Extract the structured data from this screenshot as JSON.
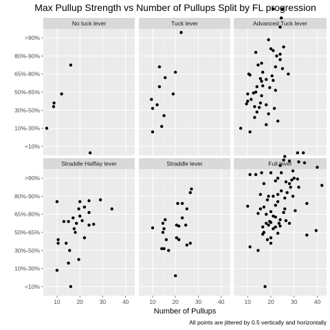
{
  "chart_data": {
    "type": "scatter",
    "title": "Max Pullup Strength vs Number of Pullups Split by FL progression",
    "xlabel": "Number of Pullups",
    "ylabel": "",
    "caption": "All points are jittered by 0.5 vertically and horizontally",
    "x_ticks": [
      10,
      20,
      30,
      40
    ],
    "xlim": [
      4,
      44
    ],
    "y_categories": [
      "<10%",
      "10%-30%",
      "30%-50%",
      "50%-65%",
      "65%-80%",
      "80%-90%",
      ">90%"
    ],
    "ylim": [
      0.5,
      7.5
    ],
    "grid": true,
    "facets": [
      {
        "name": "No tuck lever",
        "points": [
          [
            5.5,
            1.0
          ],
          [
            8.5,
            2.2
          ],
          [
            8.7,
            2.4
          ],
          [
            12,
            2.9
          ],
          [
            16,
            4.5
          ]
        ]
      },
      {
        "name": "Tuck lever",
        "points": [
          [
            22.5,
            6.3
          ],
          [
            13,
            4.4
          ],
          [
            20,
            4.1
          ],
          [
            15.5,
            3.8
          ],
          [
            13,
            3.3
          ],
          [
            19,
            2.9
          ],
          [
            9.5,
            2.6
          ],
          [
            10,
            2.1
          ],
          [
            12,
            2.3
          ],
          [
            15,
            1.7
          ],
          [
            14,
            1.1
          ],
          [
            10,
            0.8
          ]
        ]
      },
      {
        "name": "Advanced Tuck lever",
        "points": [
          [
            25,
            7.6
          ],
          [
            21,
            7.6
          ],
          [
            24.5,
            7.1
          ],
          [
            24,
            6.6
          ],
          [
            19,
            5.9
          ],
          [
            13.5,
            5.2
          ],
          [
            20,
            5.4
          ],
          [
            21,
            5.3
          ],
          [
            25.5,
            5.5
          ],
          [
            24,
            5.1
          ],
          [
            22.5,
            5.0
          ],
          [
            24,
            4.8
          ],
          [
            14.5,
            4.5
          ],
          [
            16,
            4.6
          ],
          [
            22,
            4.4
          ],
          [
            25,
            4.3
          ],
          [
            27.5,
            4.0
          ],
          [
            16.5,
            4.1
          ],
          [
            10.5,
            4.0
          ],
          [
            11,
            3.95
          ],
          [
            20.5,
            3.9
          ],
          [
            15.5,
            3.75
          ],
          [
            18,
            3.7
          ],
          [
            16,
            3.6
          ],
          [
            21,
            3.65
          ],
          [
            14,
            3.3
          ],
          [
            16.5,
            3.35
          ],
          [
            19.5,
            3.25
          ],
          [
            22,
            3.1
          ],
          [
            10,
            2.9
          ],
          [
            12.5,
            2.95
          ],
          [
            13.5,
            3.0
          ],
          [
            16,
            2.8
          ],
          [
            11.5,
            2.6
          ],
          [
            10,
            2.5
          ],
          [
            15.5,
            2.4
          ],
          [
            13,
            2.2
          ],
          [
            18,
            2.3
          ],
          [
            9.5,
            2.35
          ],
          [
            15,
            2.15
          ],
          [
            21.5,
            2.1
          ],
          [
            14,
            1.9
          ],
          [
            19,
            1.8
          ],
          [
            13,
            1.6
          ],
          [
            23,
            1.4
          ],
          [
            18,
            1.2
          ],
          [
            7,
            1.0
          ],
          [
            11,
            0.8
          ]
        ]
      },
      {
        "name": "Straddle Halflay lever",
        "points": [
          [
            24.5,
            7.4
          ],
          [
            10,
            4.7
          ],
          [
            20,
            4.7
          ],
          [
            24,
            4.75
          ],
          [
            29,
            4.8
          ],
          [
            34,
            4.3
          ],
          [
            22,
            4.4
          ],
          [
            24,
            4.1
          ],
          [
            19.5,
            4.3
          ],
          [
            20,
            3.9
          ],
          [
            17,
            3.8
          ],
          [
            21,
            3.65
          ],
          [
            15,
            3.6
          ],
          [
            18.5,
            3.5
          ],
          [
            13,
            3.6
          ],
          [
            24,
            3.4
          ],
          [
            26,
            3.45
          ],
          [
            17.5,
            3.2
          ],
          [
            18,
            3.0
          ],
          [
            22,
            2.7
          ],
          [
            10.5,
            2.6
          ],
          [
            10.5,
            2.4
          ],
          [
            14,
            2.4
          ],
          [
            15.5,
            2.0
          ],
          [
            19.5,
            1.5
          ],
          [
            15,
            1.3
          ],
          [
            10,
            0.9
          ],
          [
            16,
            0.0
          ]
        ]
      },
      {
        "name": "Straddle lever",
        "points": [
          [
            27,
            5.4
          ],
          [
            26.5,
            5.2
          ],
          [
            21,
            4.6
          ],
          [
            23,
            4.6
          ],
          [
            25,
            4.3
          ],
          [
            23,
            3.8
          ],
          [
            15.5,
            3.7
          ],
          [
            14.5,
            3.5
          ],
          [
            24.5,
            3.4
          ],
          [
            20.5,
            3.4
          ],
          [
            21.5,
            3.35
          ],
          [
            15,
            3.2
          ],
          [
            10,
            3.25
          ],
          [
            14.5,
            3.0
          ],
          [
            20.5,
            2.7
          ],
          [
            21.5,
            2.6
          ],
          [
            16,
            2.6
          ],
          [
            26.5,
            2.4
          ],
          [
            25,
            2.3
          ],
          [
            15,
            2.1
          ],
          [
            14,
            2.1
          ],
          [
            17,
            2.0
          ],
          [
            20,
            0.6
          ]
        ]
      },
      {
        "name": "Full lever",
        "points": [
          [
            31.5,
            7.4
          ],
          [
            34,
            7.4
          ],
          [
            26,
            7.2
          ],
          [
            25.5,
            7.0
          ],
          [
            28,
            6.95
          ],
          [
            32,
            6.9
          ],
          [
            34.5,
            6.85
          ],
          [
            24,
            6.7
          ],
          [
            40,
            6.6
          ],
          [
            29.5,
            6.4
          ],
          [
            11,
            6.2
          ],
          [
            13.5,
            6.2
          ],
          [
            16,
            6.3
          ],
          [
            20,
            6.3
          ],
          [
            24.5,
            6.3
          ],
          [
            23,
            6.0
          ],
          [
            29,
            5.9
          ],
          [
            30,
            6.0
          ],
          [
            31.5,
            5.95
          ],
          [
            22,
            5.85
          ],
          [
            26.5,
            5.8
          ],
          [
            28,
            5.7
          ],
          [
            17,
            5.7
          ],
          [
            42,
            5.6
          ],
          [
            28.5,
            5.5
          ],
          [
            32,
            5.5
          ],
          [
            24.5,
            5.3
          ],
          [
            27,
            5.2
          ],
          [
            23,
            5.1
          ],
          [
            19,
            5.0
          ],
          [
            21,
            5.0
          ],
          [
            15.5,
            5.1
          ],
          [
            29.5,
            5.0
          ],
          [
            26,
            4.9
          ],
          [
            18.5,
            4.8
          ],
          [
            23,
            4.7
          ],
          [
            35.5,
            4.6
          ],
          [
            22,
            4.5
          ],
          [
            17,
            4.4
          ],
          [
            10,
            4.45
          ],
          [
            26,
            4.3
          ],
          [
            25.5,
            4.1
          ],
          [
            20,
            4.15
          ],
          [
            15.5,
            4.3
          ],
          [
            30.5,
            4.2
          ],
          [
            14.5,
            4.05
          ],
          [
            18,
            4.0
          ],
          [
            21,
            3.9
          ],
          [
            22,
            3.85
          ],
          [
            24,
            3.7
          ],
          [
            19.5,
            3.6
          ],
          [
            18,
            3.5
          ],
          [
            23.5,
            3.5
          ],
          [
            20,
            3.55
          ],
          [
            26.5,
            3.65
          ],
          [
            28,
            3.5
          ],
          [
            19,
            3.4
          ],
          [
            24,
            3.35
          ],
          [
            16.5,
            3.3
          ],
          [
            22,
            3.3
          ],
          [
            21,
            3.2
          ],
          [
            17,
            3.0
          ],
          [
            23,
            2.95
          ],
          [
            39.5,
            3.1
          ],
          [
            16.5,
            2.9
          ],
          [
            35.5,
            2.85
          ],
          [
            18.5,
            2.6
          ],
          [
            20,
            2.7
          ],
          [
            20,
            2.4
          ],
          [
            11,
            2.2
          ],
          [
            14.5,
            2.0
          ],
          [
            17.5,
            0.0
          ]
        ]
      }
    ]
  }
}
